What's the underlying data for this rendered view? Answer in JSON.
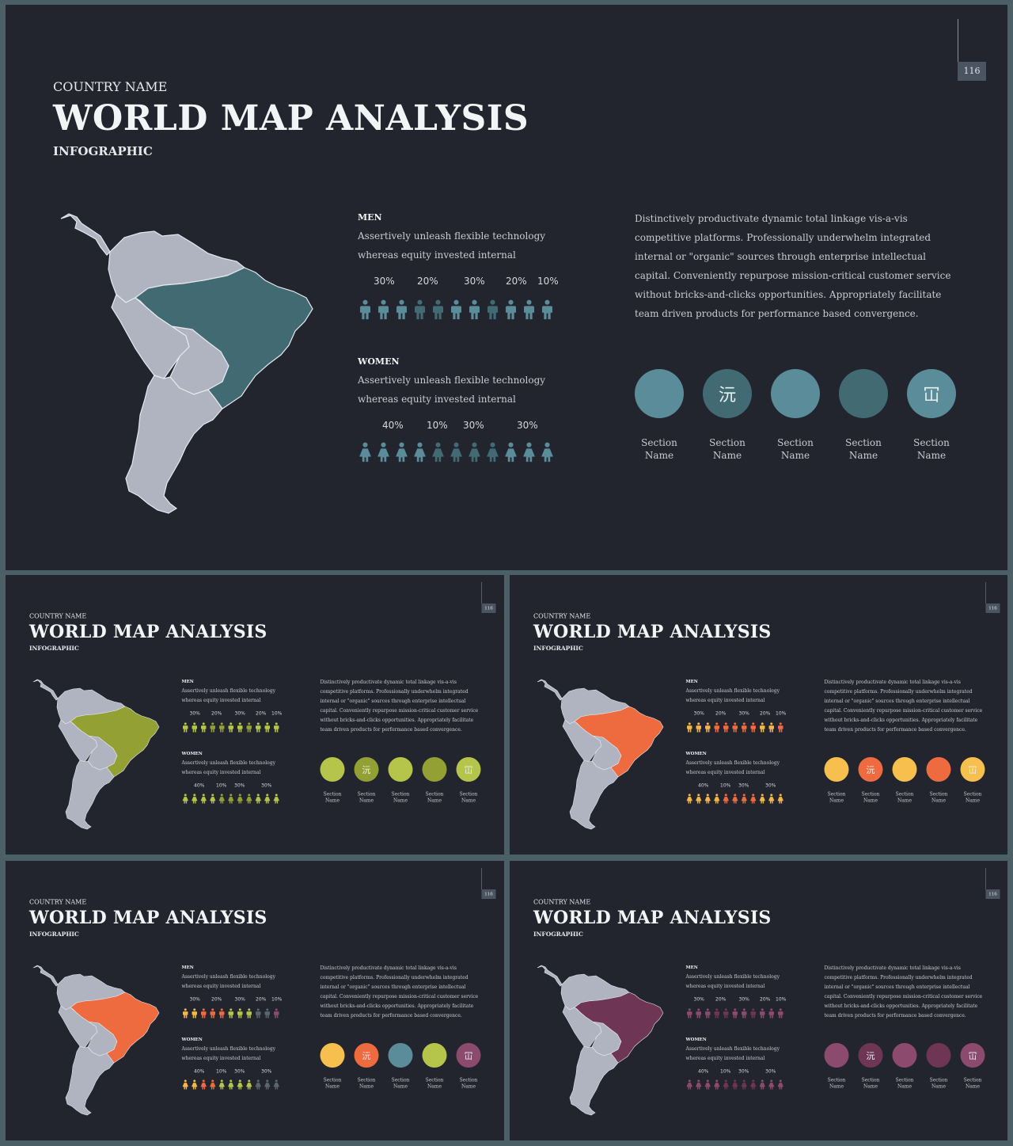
{
  "slide": {
    "page_number": "116",
    "country_label": "COUNTRY NAME",
    "title": "WORLD MAP ANALYSIS",
    "subtitle": "INFOGRAPHIC",
    "men": {
      "heading": "MEN",
      "text": "Assertively unleash flexible technology whereas equity invested internal",
      "percents": [
        "30%",
        "20%",
        "30%",
        "20%",
        "10%"
      ]
    },
    "women": {
      "heading": "WOMEN",
      "text": "Assertively unleash flexible technology whereas equity invested internal",
      "percents": [
        "40%",
        "10%",
        "30%",
        "30%"
      ]
    },
    "description": "Distinctively productivate dynamic total linkage vis-a-vis competitive platforms. Professionally underwhelm integrated internal or \"organic\" sources through enterprise intellectual capital. Conveniently repurpose mission-critical customer service without bricks-and-clicks opportunities. Appropriately facilitate team driven products for performance based convergence.",
    "sections": [
      {
        "label": "Section Name",
        "glyph": ""
      },
      {
        "label": "Section Name",
        "glyph": "沅"
      },
      {
        "label": "Section Name",
        "glyph": ""
      },
      {
        "label": "Section Name",
        "glyph": ""
      },
      {
        "label": "Section Name",
        "glyph": "冚"
      }
    ]
  },
  "themes": [
    {
      "name": "teal",
      "map_highlight": "#426a73",
      "men_icon_colors": [
        "#5a8c99",
        "#5a8c99",
        "#5a8c99",
        "#426a73",
        "#426a73",
        "#5a8c99",
        "#5a8c99",
        "#426a73",
        "#5a8c99",
        "#5a8c99",
        "#5a8c99"
      ],
      "women_icon_colors": [
        "#5a8c99",
        "#5a8c99",
        "#5a8c99",
        "#5a8c99",
        "#426a73",
        "#426a73",
        "#426a73",
        "#426a73",
        "#5a8c99",
        "#5a8c99",
        "#5a8c99"
      ],
      "circle_colors": [
        "#5a8c99",
        "#426a73",
        "#5a8c99",
        "#426a73",
        "#5a8c99"
      ]
    },
    {
      "name": "green",
      "map_highlight": "#93a033",
      "men_icon_colors": [
        "#b5c44a",
        "#b5c44a",
        "#b5c44a",
        "#93a033",
        "#93a033",
        "#b5c44a",
        "#b5c44a",
        "#93a033",
        "#b5c44a",
        "#b5c44a",
        "#b5c44a"
      ],
      "women_icon_colors": [
        "#b5c44a",
        "#b5c44a",
        "#b5c44a",
        "#b5c44a",
        "#93a033",
        "#93a033",
        "#93a033",
        "#93a033",
        "#b5c44a",
        "#b5c44a",
        "#b5c44a"
      ],
      "circle_colors": [
        "#b5c44a",
        "#93a033",
        "#b5c44a",
        "#93a033",
        "#b5c44a"
      ]
    },
    {
      "name": "orange",
      "map_highlight": "#ee6b3f",
      "men_icon_colors": [
        "#f2b64a",
        "#f2b64a",
        "#f2b64a",
        "#ee6b3f",
        "#ee6b3f",
        "#ee6b3f",
        "#ee6b3f",
        "#ee6b3f",
        "#f2b64a",
        "#f2b64a",
        "#ee6b3f"
      ],
      "women_icon_colors": [
        "#f2b64a",
        "#f2b64a",
        "#f2b64a",
        "#f2b64a",
        "#ee6b3f",
        "#ee6b3f",
        "#ee6b3f",
        "#ee6b3f",
        "#f2b64a",
        "#f2b64a",
        "#f2b64a"
      ],
      "circle_colors": [
        "#f7c04e",
        "#ee6b3f",
        "#f7c04e",
        "#ee6b3f",
        "#f7c04e"
      ]
    },
    {
      "name": "mixed",
      "map_highlight": "#ee6b3f",
      "men_icon_colors": [
        "#f2b64a",
        "#f2b64a",
        "#ee6b3f",
        "#ee6b3f",
        "#ee6b3f",
        "#b5c44a",
        "#b5c44a",
        "#b5c44a",
        "#5a6570",
        "#5a6570",
        "#8c4a6e"
      ],
      "women_icon_colors": [
        "#f2b64a",
        "#f2b64a",
        "#ee6b3f",
        "#ee6b3f",
        "#b5c44a",
        "#b5c44a",
        "#b5c44a",
        "#b5c44a",
        "#5a6570",
        "#5a6570",
        "#5a6570"
      ],
      "circle_colors": [
        "#f7c04e",
        "#ee6b3f",
        "#5a8c99",
        "#b5c44a",
        "#8c4a6e"
      ]
    },
    {
      "name": "plum",
      "map_highlight": "#6e3555",
      "men_icon_colors": [
        "#8c4a6e",
        "#8c4a6e",
        "#8c4a6e",
        "#6e3555",
        "#6e3555",
        "#8c4a6e",
        "#8c4a6e",
        "#6e3555",
        "#8c4a6e",
        "#8c4a6e",
        "#8c4a6e"
      ],
      "women_icon_colors": [
        "#8c4a6e",
        "#8c4a6e",
        "#8c4a6e",
        "#8c4a6e",
        "#6e3555",
        "#6e3555",
        "#6e3555",
        "#6e3555",
        "#8c4a6e",
        "#8c4a6e",
        "#8c4a6e"
      ],
      "circle_colors": [
        "#8c4a6e",
        "#6e3555",
        "#8c4a6e",
        "#6e3555",
        "#8c4a6e"
      ]
    }
  ],
  "colors": {
    "background": "#22252d",
    "frame": "#4b5f66",
    "map_base": "#b0b4c0",
    "map_border": "#e6e8ee"
  }
}
